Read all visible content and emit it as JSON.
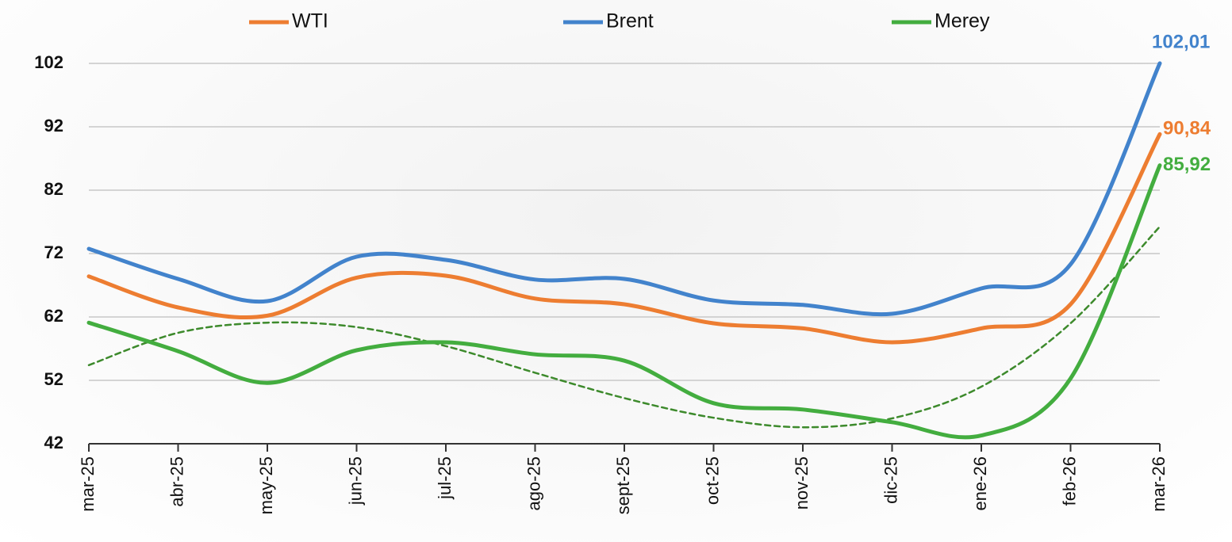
{
  "chart_data": {
    "type": "line",
    "categories": [
      "mar-25",
      "abr-25",
      "may-25",
      "jun-25",
      "jul-25",
      "ago-25",
      "sept-25",
      "oct-25",
      "nov-25",
      "dic-25",
      "ene-26",
      "feb-26",
      "mar-26"
    ],
    "series": [
      {
        "name": "WTI",
        "color": "#ed7d31",
        "values": [
          68.4,
          63.5,
          62.2,
          68.2,
          68.5,
          64.9,
          64,
          61,
          60.2,
          58,
          60.2,
          64,
          90.84
        ],
        "value_labels": [
          null,
          null,
          null,
          null,
          null,
          null,
          null,
          null,
          null,
          null,
          null,
          null,
          "90,84"
        ]
      },
      {
        "name": "Brent",
        "color": "#4283cc",
        "values": [
          72.75,
          68,
          64.5,
          71.5,
          71,
          67.9,
          68,
          64.6,
          63.9,
          62.5,
          66.5,
          70.3,
          102.01
        ],
        "value_labels": [
          null,
          null,
          null,
          null,
          null,
          null,
          null,
          null,
          null,
          null,
          null,
          null,
          "102,01"
        ]
      },
      {
        "name": "Merey",
        "color": "#43ad3f",
        "values": [
          61.1,
          56.6,
          51.6,
          56.75,
          58,
          56.1,
          55.1,
          48.4,
          47.4,
          45.4,
          43.3,
          52.3,
          85.92
        ],
        "value_labels": [
          null,
          null,
          null,
          null,
          null,
          null,
          null,
          null,
          null,
          null,
          null,
          null,
          "85,92"
        ]
      },
      {
        "color": "#3d8a2c",
        "dashed": true,
        "values": [
          54.4,
          59.5,
          61.1,
          60.4,
          57.4,
          53.2,
          49.2,
          46.1,
          44.6,
          46,
          51,
          61,
          76.25
        ]
      }
    ],
    "ylim": [
      42,
      102
    ],
    "yticks": [
      42,
      52,
      62,
      72,
      82,
      92,
      102
    ],
    "grid": true
  }
}
